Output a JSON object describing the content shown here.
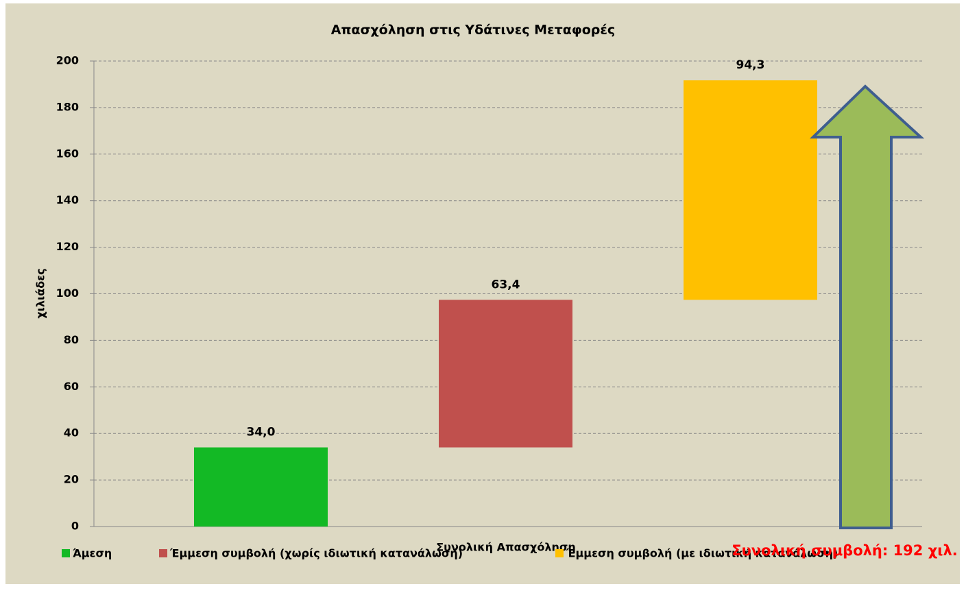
{
  "chart_data": {
    "type": "waterfall-bar",
    "title": "Απασχόληση στις Υδάτινες Μεταφορές",
    "y_label": "χιλιάδες",
    "categories": [
      "Συνολική Απασχόληση"
    ],
    "series": [
      {
        "name": "Άμεση",
        "color": "#13b925",
        "values": [
          34.0
        ],
        "value_labels": [
          "34,0"
        ]
      },
      {
        "name": "Έμμεση συμβολή (χωρίς ιδιωτική κατανάλωση)",
        "color": "#c0504d",
        "values": [
          63.4
        ],
        "value_labels": [
          "63,4"
        ]
      },
      {
        "name": "Έμμεση συμβολή (με ιδιωτική κατανάλωση)",
        "color": "#ffc000",
        "values": [
          94.3
        ],
        "value_labels": [
          "94,3"
        ]
      }
    ],
    "annotation": "Συνολική συμβολή: 192 χιλ.",
    "ylim": [
      0,
      200
    ],
    "yticks": [
      0,
      20,
      40,
      60,
      80,
      100,
      120,
      140,
      160,
      180,
      200
    ],
    "grid": true,
    "legend": "bottom"
  }
}
